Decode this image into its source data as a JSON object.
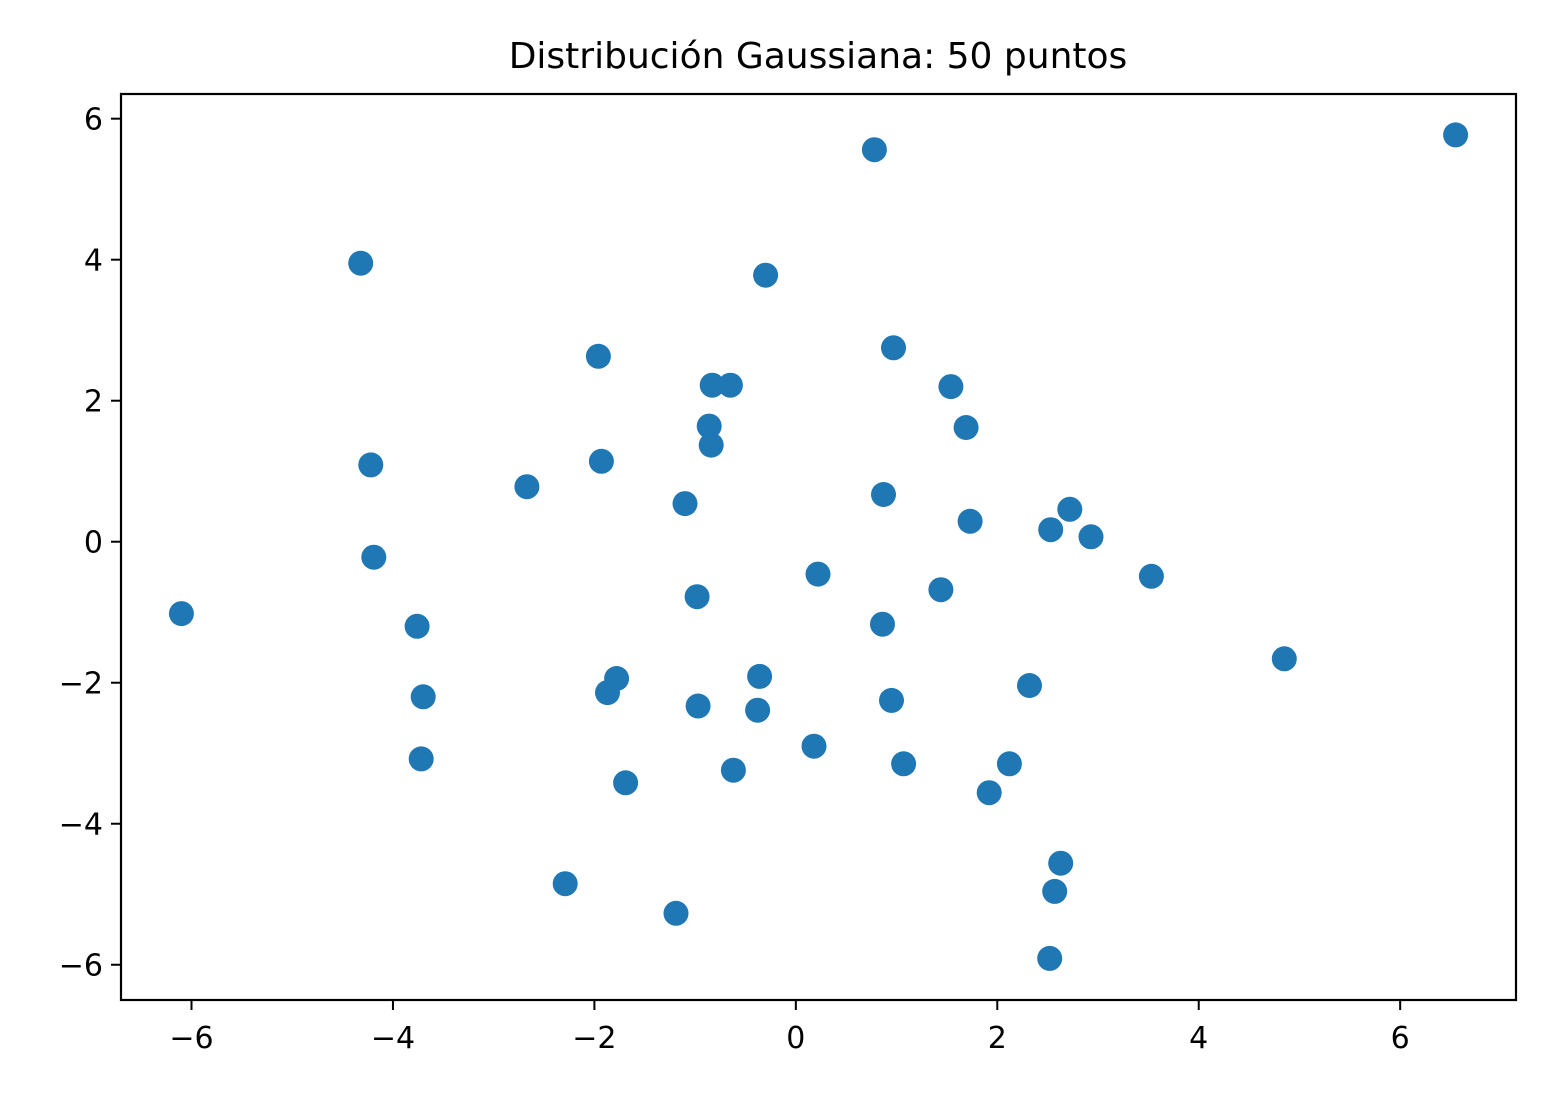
{
  "chart_data": {
    "type": "scatter",
    "title": "Distribución Gaussiana: 50 puntos",
    "xlabel": "",
    "ylabel": "",
    "xlim": [
      -6.7,
      7.15
    ],
    "ylim": [
      -6.5,
      6.35
    ],
    "xticks": [
      {
        "value": -6,
        "label": "−6"
      },
      {
        "value": -4,
        "label": "−4"
      },
      {
        "value": -2,
        "label": "−2"
      },
      {
        "value": 0,
        "label": "0"
      },
      {
        "value": 2,
        "label": "2"
      },
      {
        "value": 4,
        "label": "4"
      },
      {
        "value": 6,
        "label": "6"
      }
    ],
    "yticks": [
      {
        "value": -6,
        "label": "−6"
      },
      {
        "value": -4,
        "label": "−4"
      },
      {
        "value": -2,
        "label": "−2"
      },
      {
        "value": 0,
        "label": "0"
      },
      {
        "value": 2,
        "label": "2"
      },
      {
        "value": 4,
        "label": "4"
      },
      {
        "value": 6,
        "label": "6"
      }
    ],
    "grid": false,
    "marker_color": "#1f77b4",
    "points": [
      {
        "x": 6.55,
        "y": 5.77
      },
      {
        "x": 0.78,
        "y": 5.56
      },
      {
        "x": -4.32,
        "y": 3.95
      },
      {
        "x": -0.3,
        "y": 3.78
      },
      {
        "x": 0.97,
        "y": 2.75
      },
      {
        "x": -1.96,
        "y": 2.63
      },
      {
        "x": -0.83,
        "y": 2.22
      },
      {
        "x": -0.65,
        "y": 2.22
      },
      {
        "x": 1.54,
        "y": 2.2
      },
      {
        "x": -0.86,
        "y": 1.64
      },
      {
        "x": 1.69,
        "y": 1.62
      },
      {
        "x": -0.84,
        "y": 1.37
      },
      {
        "x": -1.93,
        "y": 1.14
      },
      {
        "x": -4.22,
        "y": 1.09
      },
      {
        "x": -2.67,
        "y": 0.78
      },
      {
        "x": 0.87,
        "y": 0.67
      },
      {
        "x": -1.1,
        "y": 0.54
      },
      {
        "x": 2.72,
        "y": 0.46
      },
      {
        "x": 1.73,
        "y": 0.29
      },
      {
        "x": 2.53,
        "y": 0.17
      },
      {
        "x": 2.93,
        "y": 0.07
      },
      {
        "x": -4.19,
        "y": -0.22
      },
      {
        "x": 0.22,
        "y": -0.46
      },
      {
        "x": 3.53,
        "y": -0.49
      },
      {
        "x": 1.44,
        "y": -0.68
      },
      {
        "x": -0.98,
        "y": -0.78
      },
      {
        "x": -6.1,
        "y": -1.02
      },
      {
        "x": 0.86,
        "y": -1.17
      },
      {
        "x": -3.76,
        "y": -1.2
      },
      {
        "x": 4.85,
        "y": -1.66
      },
      {
        "x": -0.36,
        "y": -1.91
      },
      {
        "x": -1.78,
        "y": -1.94
      },
      {
        "x": 2.32,
        "y": -2.04
      },
      {
        "x": -1.87,
        "y": -2.14
      },
      {
        "x": -3.7,
        "y": -2.2
      },
      {
        "x": 0.95,
        "y": -2.25
      },
      {
        "x": -0.97,
        "y": -2.33
      },
      {
        "x": -0.38,
        "y": -2.39
      },
      {
        "x": 0.18,
        "y": -2.9
      },
      {
        "x": -3.72,
        "y": -3.08
      },
      {
        "x": 2.12,
        "y": -3.15
      },
      {
        "x": 1.07,
        "y": -3.15
      },
      {
        "x": -0.62,
        "y": -3.24
      },
      {
        "x": -1.69,
        "y": -3.42
      },
      {
        "x": 1.92,
        "y": -3.56
      },
      {
        "x": 2.63,
        "y": -4.56
      },
      {
        "x": -2.29,
        "y": -4.85
      },
      {
        "x": 2.57,
        "y": -4.96
      },
      {
        "x": -1.19,
        "y": -5.27
      },
      {
        "x": 2.52,
        "y": -5.91
      }
    ]
  }
}
